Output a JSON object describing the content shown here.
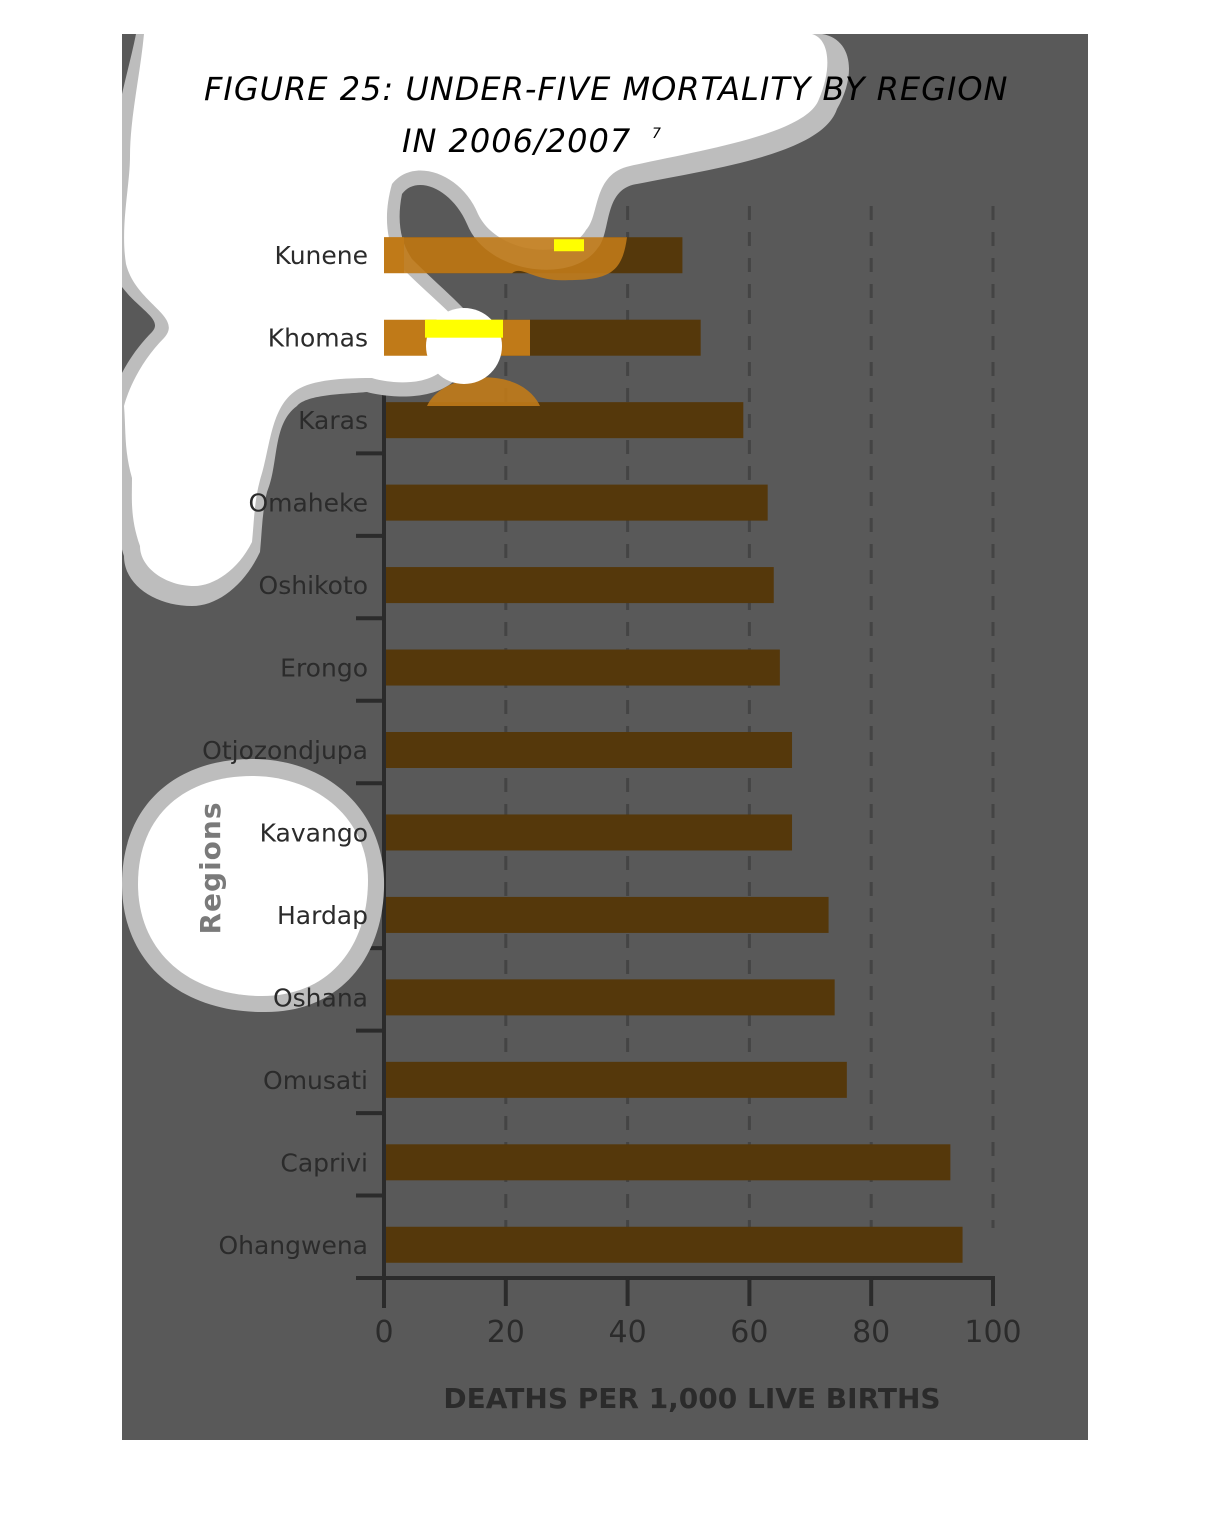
{
  "chart_data": {
    "type": "bar",
    "orientation": "horizontal",
    "title": "FIGURE 25: UNDER-FIVE MORTALITY BY REGION",
    "title_line2": "IN 2006/2007",
    "title_superscript": "7",
    "xlabel": "DEATHS PER 1,000 LIVE BIRTHS",
    "ylabel": "Regions",
    "xlim": [
      0,
      100
    ],
    "xticks": [
      "0",
      "20",
      "40",
      "60",
      "80",
      "100"
    ],
    "grid": "vertical dashed",
    "categories": [
      "Kunene",
      "Khomas",
      "Karas",
      "Omaheke",
      "Oshikoto",
      "Erongo",
      "Otjozondjupa",
      "Kavango",
      "Hardap",
      "Oshana",
      "Omusati",
      "Caprivi",
      "Ohangwena"
    ],
    "values": [
      49,
      52,
      59,
      63,
      64,
      65,
      67,
      67,
      73,
      74,
      76,
      93,
      95
    ]
  },
  "colors": {
    "panel_background": "#595959",
    "bar": "#55380b",
    "bar_highlight": "#c07a18",
    "title": "#a0622d",
    "axis": "#2b2b2b",
    "grid": "#444444",
    "blob_fill": "#ffffff",
    "blob_border": "#bdbdbd",
    "marker_yellow": "#ffff00"
  }
}
